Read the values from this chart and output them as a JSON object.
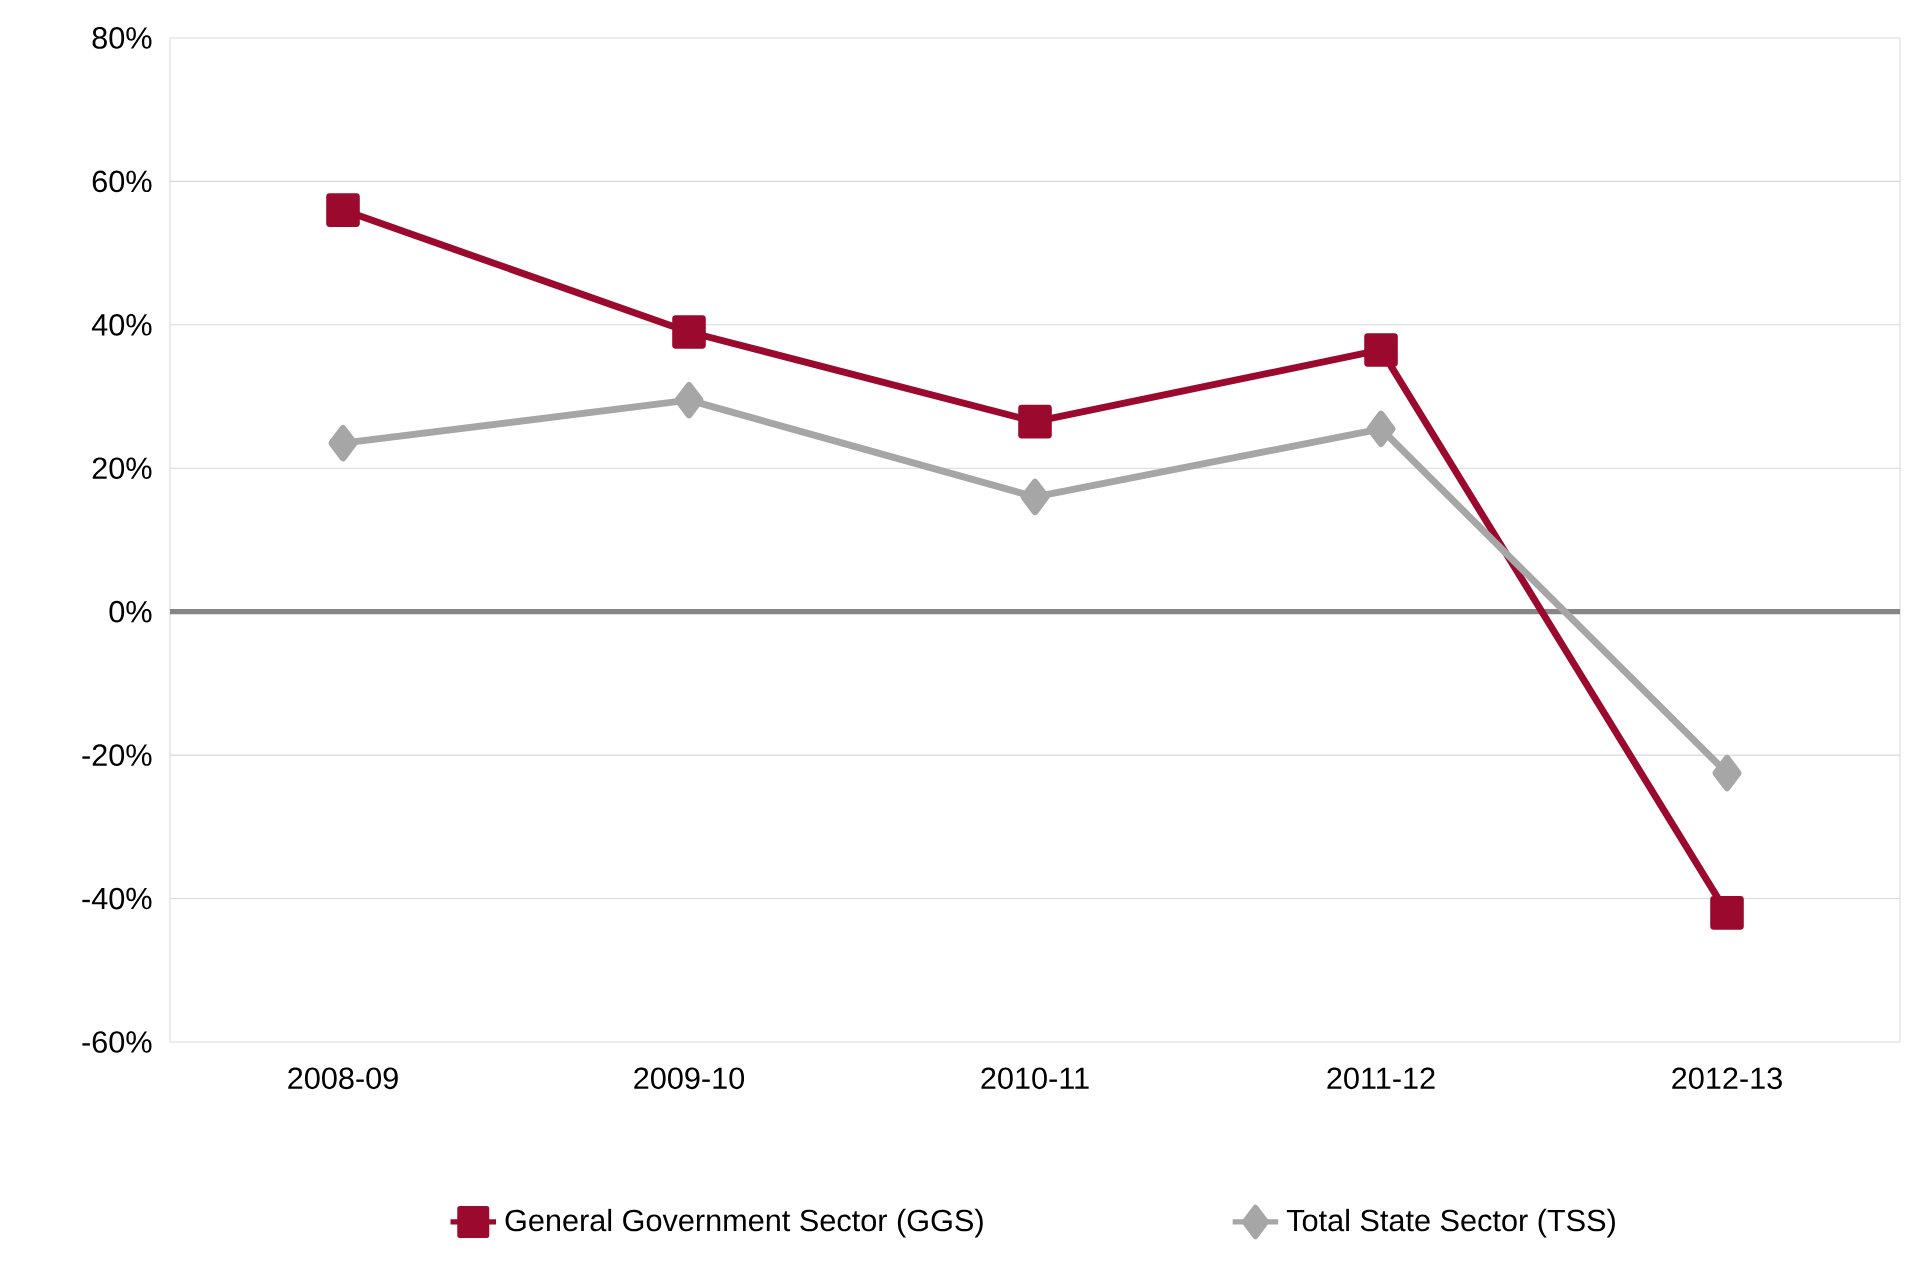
{
  "chart_data": {
    "type": "line",
    "categories": [
      "2008-09",
      "2009-10",
      "2010-11",
      "2011-12",
      "2012-13"
    ],
    "series": [
      {
        "name": "General Government Sector (GGS)",
        "color": "#9b0a2e",
        "marker": "square",
        "values": [
          56,
          39,
          26.5,
          36.5,
          -42
        ]
      },
      {
        "name": "Total State Sector (TSS)",
        "color": "#a6a6a6",
        "marker": "diamond",
        "values": [
          23.5,
          29.5,
          16,
          25.5,
          -22.5
        ]
      }
    ],
    "ylim": [
      -60,
      80
    ],
    "yticks": [
      {
        "value": -60,
        "label": "-60%"
      },
      {
        "value": -40,
        "label": "-40%"
      },
      {
        "value": -20,
        "label": "-20%"
      },
      {
        "value": 0,
        "label": "0%"
      },
      {
        "value": 20,
        "label": "20%"
      },
      {
        "value": 40,
        "label": "40%"
      },
      {
        "value": 60,
        "label": "60%"
      },
      {
        "value": 80,
        "label": "80%"
      }
    ],
    "ref_lines": [
      {
        "axis": "y",
        "value": 0,
        "color": "#868686"
      }
    ],
    "grid": "y",
    "legend": "bottom",
    "line_style": "solid"
  }
}
